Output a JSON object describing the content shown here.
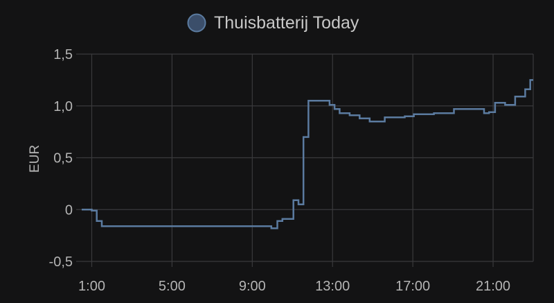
{
  "chart_data": {
    "type": "line",
    "step": true,
    "title": "",
    "xlabel": "",
    "ylabel": "EUR",
    "legend_position": "top-center",
    "grid": true,
    "xlim": [
      0.5,
      23
    ],
    "ylim": [
      -0.5,
      1.5
    ],
    "x_ticks": [
      {
        "label": "1:00",
        "value": 1
      },
      {
        "label": "5:00",
        "value": 5
      },
      {
        "label": "9:00",
        "value": 9
      },
      {
        "label": "13:00",
        "value": 13
      },
      {
        "label": "17:00",
        "value": 17
      },
      {
        "label": "21:00",
        "value": 21
      }
    ],
    "y_ticks": [
      {
        "label": "1,5",
        "value": 1.5
      },
      {
        "label": "1,0",
        "value": 1.0
      },
      {
        "label": "0,5",
        "value": 0.5
      },
      {
        "label": "0",
        "value": 0
      },
      {
        "label": "-0,5",
        "value": -0.5
      }
    ],
    "series": [
      {
        "name": "Thuisbatterij Today",
        "color": "#5b7ba0",
        "legend_fill": "#3b4e6a",
        "x": [
          0.5,
          1.0,
          1.25,
          1.5,
          9.95,
          10.25,
          10.5,
          11.05,
          11.3,
          11.55,
          11.8,
          12.85,
          13.1,
          13.35,
          13.85,
          14.35,
          14.85,
          15.6,
          16.6,
          17.05,
          18.05,
          19.05,
          19.55,
          20.55,
          20.8,
          21.1,
          21.6,
          22.1,
          22.6,
          22.85
        ],
        "y": [
          0.0,
          -0.01,
          -0.11,
          -0.16,
          -0.18,
          -0.11,
          -0.09,
          0.09,
          0.05,
          0.7,
          1.05,
          1.01,
          0.97,
          0.93,
          0.91,
          0.88,
          0.85,
          0.89,
          0.9,
          0.92,
          0.93,
          0.97,
          0.97,
          0.93,
          0.94,
          1.03,
          1.01,
          1.09,
          1.16,
          1.25
        ]
      }
    ]
  }
}
